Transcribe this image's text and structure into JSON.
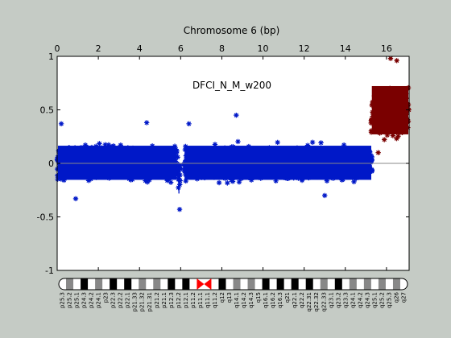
{
  "chart_data": {
    "type": "scatter",
    "title": "Chromosome 6 (bp)",
    "annotation": "DFCI_N_M_w200",
    "xlim": [
      0,
      17.1
    ],
    "ylim": [
      -1,
      1
    ],
    "x_ticks": [
      0,
      2,
      4,
      6,
      8,
      10,
      12,
      14,
      16
    ],
    "y_ticks": [
      1,
      0.5,
      0,
      -0.5,
      -1
    ],
    "y_tick_labels": [
      "1",
      "0.5",
      "0",
      "-0.5",
      "-1"
    ],
    "baseline_y": 0,
    "series": [
      {
        "color": "#0018c8",
        "marker": "asterisk",
        "segments": [
          {
            "x": [
              0.0,
              5.85
            ],
            "center": 0.0,
            "spread_low": -0.28,
            "spread_high": 0.3
          },
          {
            "x": [
              5.85,
              5.98
            ],
            "center": -0.1,
            "spread_low": -0.43,
            "spread_high": 0.1
          },
          {
            "x": [
              6.15,
              15.3
            ],
            "center": 0.0,
            "spread_low": -0.28,
            "spread_high": 0.3
          }
        ],
        "outliers": [
          {
            "x": 8.7,
            "y": 0.45
          },
          {
            "x": 4.35,
            "y": 0.38
          },
          {
            "x": 5.95,
            "y": -0.43
          },
          {
            "x": 0.9,
            "y": -0.33
          },
          {
            "x": 13.0,
            "y": -0.3
          },
          {
            "x": 0.2,
            "y": 0.37
          },
          {
            "x": 6.4,
            "y": 0.37
          }
        ]
      },
      {
        "color": "#7a0000",
        "marker": "asterisk",
        "segments": [
          {
            "x": [
              15.25,
              17.1
            ],
            "center": 0.48,
            "spread_low": 0.1,
            "spread_high": 0.92
          }
        ],
        "outliers": [
          {
            "x": 16.2,
            "y": 0.98
          },
          {
            "x": 16.5,
            "y": 0.96
          },
          {
            "x": 15.6,
            "y": 0.1
          }
        ]
      }
    ],
    "ideogram": {
      "bands": [
        {
          "label": "p25.3",
          "stain": "white"
        },
        {
          "label": "p25.2",
          "stain": "gray"
        },
        {
          "label": "p25.1",
          "stain": "white"
        },
        {
          "label": "p24.3",
          "stain": "black"
        },
        {
          "label": "p24.2",
          "stain": "white"
        },
        {
          "label": "p24.1",
          "stain": "gray"
        },
        {
          "label": "p23",
          "stain": "white"
        },
        {
          "label": "p22.3",
          "stain": "black"
        },
        {
          "label": "p22.2",
          "stain": "white"
        },
        {
          "label": "p22.1",
          "stain": "black"
        },
        {
          "label": "p21.33",
          "stain": "white"
        },
        {
          "label": "p21.32",
          "stain": "gray"
        },
        {
          "label": "p21.31",
          "stain": "white"
        },
        {
          "label": "p21.2",
          "stain": "gray"
        },
        {
          "label": "p21.1",
          "stain": "white"
        },
        {
          "label": "p12.3",
          "stain": "black"
        },
        {
          "label": "p12.2",
          "stain": "white"
        },
        {
          "label": "p12.1",
          "stain": "black"
        },
        {
          "label": "p11.2",
          "stain": "white"
        },
        {
          "label": "p11.1",
          "stain": "centromere"
        },
        {
          "label": "q11.1",
          "stain": "centromere"
        },
        {
          "label": "q11.2",
          "stain": "white"
        },
        {
          "label": "q12",
          "stain": "black"
        },
        {
          "label": "q13",
          "stain": "white"
        },
        {
          "label": "q14.1",
          "stain": "gray"
        },
        {
          "label": "q14.2",
          "stain": "white"
        },
        {
          "label": "q14.3",
          "stain": "gray"
        },
        {
          "label": "q15",
          "stain": "white"
        },
        {
          "label": "q16.1",
          "stain": "black"
        },
        {
          "label": "q16.2",
          "stain": "white"
        },
        {
          "label": "q16.3",
          "stain": "black"
        },
        {
          "label": "q21",
          "stain": "white"
        },
        {
          "label": "q22.1",
          "stain": "black"
        },
        {
          "label": "q22.2",
          "stain": "white"
        },
        {
          "label": "q22.31",
          "stain": "black"
        },
        {
          "label": "q22.32",
          "stain": "white"
        },
        {
          "label": "q22.33",
          "stain": "gray"
        },
        {
          "label": "q23.1",
          "stain": "white"
        },
        {
          "label": "q23.2",
          "stain": "black"
        },
        {
          "label": "q23.3",
          "stain": "white"
        },
        {
          "label": "q24.1",
          "stain": "gray"
        },
        {
          "label": "q24.2",
          "stain": "white"
        },
        {
          "label": "q24.3",
          "stain": "gray"
        },
        {
          "label": "q25.1",
          "stain": "white"
        },
        {
          "label": "q25.2",
          "stain": "gray"
        },
        {
          "label": "q25.3",
          "stain": "white"
        },
        {
          "label": "q26",
          "stain": "gray"
        },
        {
          "label": "q27",
          "stain": "white"
        }
      ],
      "colors": {
        "white": "#ffffff",
        "gray": "#888888",
        "black": "#000000",
        "centromere": "#ff0000"
      }
    }
  }
}
